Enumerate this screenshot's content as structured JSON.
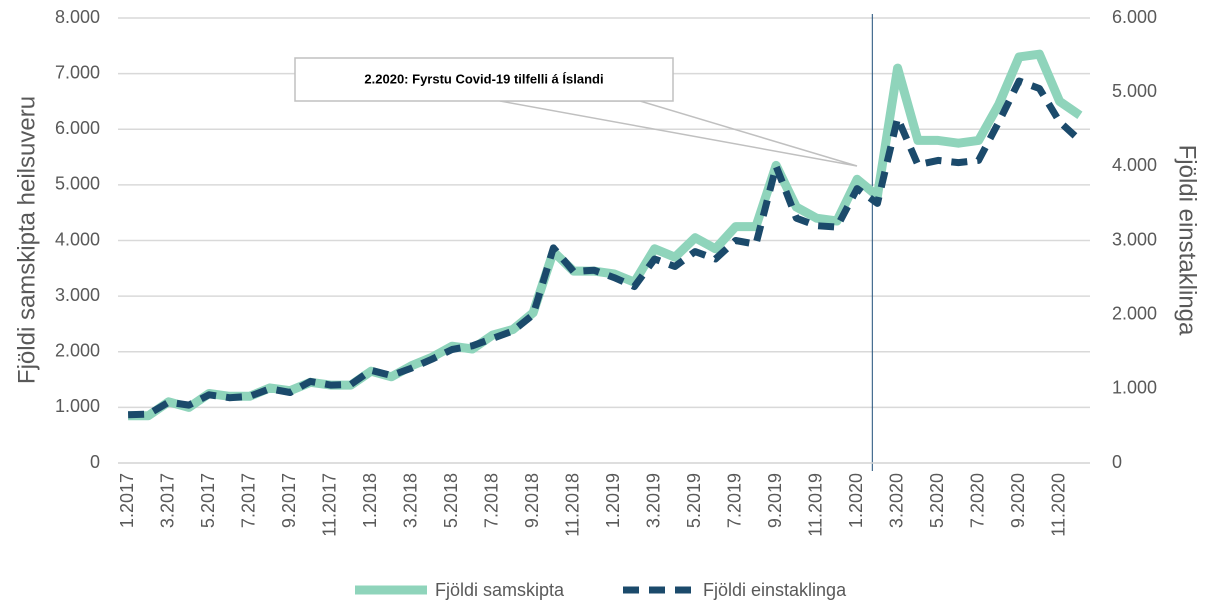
{
  "chart_data": {
    "type": "line",
    "y_label": "Fjöldi samskipta heilsuveru",
    "y2_label": "Fjöldi einstaklinga",
    "annotation": "2.2020: Fyrstu Covid-19 tilfelli á Íslandi",
    "categories": [
      "1.2017",
      null,
      "3.2017",
      null,
      "5.2017",
      null,
      "7.2017",
      null,
      "9.2017",
      null,
      "11.2017",
      null,
      "1.2018",
      null,
      "3.2018",
      null,
      "5.2018",
      null,
      "7.2018",
      null,
      "9.2018",
      null,
      "11.2018",
      null,
      "1.2019",
      null,
      "3.2019",
      null,
      "5.2019",
      null,
      "7.2019",
      null,
      "9.2019",
      null,
      "11.2019",
      null,
      "1.2020",
      null,
      "3.2020",
      null,
      "5.2020",
      null,
      "7.2020",
      null,
      "9.2020",
      null,
      "11.2020",
      null
    ],
    "series": [
      {
        "name": "Fjöldi samskipta",
        "color": "#8fd4bb",
        "axis": "y",
        "values": [
          850,
          850,
          1100,
          1000,
          1250,
          1200,
          1200,
          1350,
          1300,
          1450,
          1400,
          1400,
          1650,
          1550,
          1750,
          1900,
          2100,
          2050,
          2300,
          2400,
          2700,
          3800,
          3450,
          3450,
          3400,
          3250,
          3850,
          3700,
          4050,
          3850,
          4250,
          4250,
          5350,
          4600,
          4400,
          4350,
          5100,
          4800,
          7100,
          5800,
          5800,
          5750,
          5800,
          6450,
          7300,
          7350,
          6500,
          6250
        ]
      },
      {
        "name": "Fjöldi einstaklinga",
        "color": "#1b4a6b",
        "axis": "y2",
        "dashed": true,
        "values": [
          650,
          660,
          820,
          780,
          920,
          880,
          900,
          1000,
          950,
          1100,
          1050,
          1060,
          1250,
          1180,
          1280,
          1400,
          1530,
          1580,
          1680,
          1780,
          2000,
          2900,
          2580,
          2600,
          2500,
          2380,
          2750,
          2650,
          2850,
          2750,
          3000,
          2950,
          4000,
          3300,
          3200,
          3180,
          3700,
          3500,
          4650,
          4020,
          4080,
          4050,
          4080,
          4600,
          5150,
          5050,
          4600,
          4350
        ]
      }
    ],
    "ylim": [
      0,
      8000
    ],
    "yticks": [
      0,
      {
        "value": 1000,
        "label": "1.000"
      },
      {
        "value": 2000,
        "label": "2.000"
      },
      {
        "value": 3000,
        "label": "3.000"
      },
      {
        "value": 4000,
        "label": "4.000"
      },
      {
        "value": 5000,
        "label": "5.000"
      },
      {
        "value": 6000,
        "label": "6.000"
      },
      {
        "value": 7000,
        "label": "7.000"
      },
      {
        "value": 8000,
        "label": "8.000"
      }
    ],
    "y2lim": [
      0,
      6000
    ],
    "y2ticks": [
      0,
      {
        "value": 1000,
        "label": "1.000"
      },
      {
        "value": 2000,
        "label": "2.000"
      },
      {
        "value": 3000,
        "label": "3.000"
      },
      {
        "value": 4000,
        "label": "4.000"
      },
      {
        "value": 5000,
        "label": "5.000"
      },
      {
        "value": 6000,
        "label": "6.000"
      }
    ],
    "grid": true,
    "legend": "bottom"
  }
}
